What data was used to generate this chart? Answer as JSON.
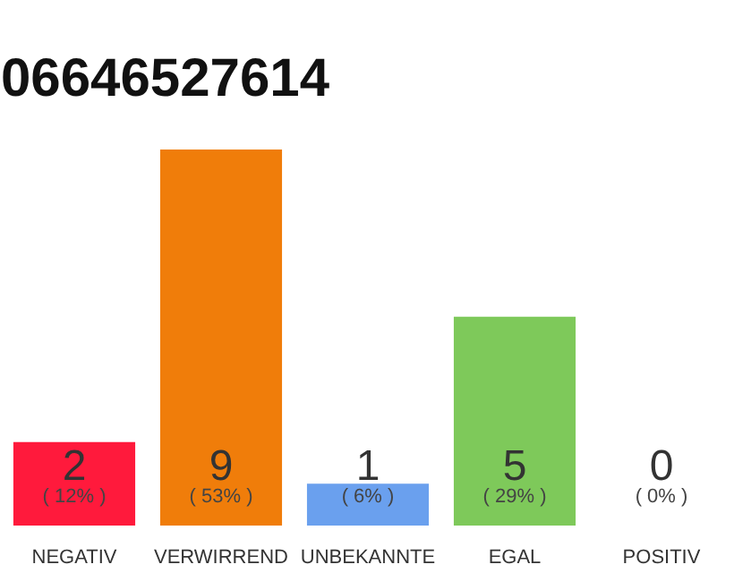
{
  "chart_data": {
    "type": "bar",
    "title": "06646527614",
    "categories": [
      "NEGATIV",
      "VERWIRREND",
      "UNBEKANNTE",
      "EGAL",
      "POSITIV"
    ],
    "values": [
      2,
      9,
      1,
      5,
      0
    ],
    "colors": [
      "#ff1a3c",
      "#f07d0a",
      "#6aa0ee",
      "#7ec95a",
      "#c0c0c0"
    ],
    "value_labels": [
      "2",
      "9",
      "1",
      "5",
      "0"
    ],
    "annotations": [
      {
        "text": "( 12% )",
        "x": "NEGATIV",
        "y": 0
      },
      {
        "text": "( 53% )",
        "x": "VERWIRREND",
        "y": 0
      },
      {
        "text": "( 6% )",
        "x": "UNBEKANNTE",
        "y": 0
      },
      {
        "text": "( 29% )",
        "x": "EGAL",
        "y": 0
      },
      {
        "text": "( 0% )",
        "x": "POSITIV",
        "y": 0
      }
    ],
    "tick_labels": "x",
    "grid": false
  }
}
